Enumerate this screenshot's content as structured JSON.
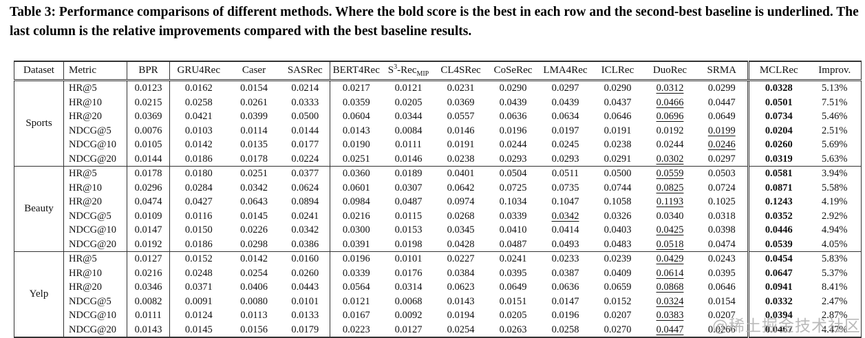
{
  "caption": "Table 3: Performance comparisons of different methods. Where the bold score is the best in each row and the second-best baseline is underlined. The last column is the relative improvements compared with the best baseline results.",
  "watermark": "@稀土掘金技术社区",
  "table": {
    "columns": [
      {
        "key": "dataset",
        "label": "Dataset"
      },
      {
        "key": "metric",
        "label": "Metric"
      },
      {
        "key": "v0",
        "label": "BPR"
      },
      {
        "key": "v1",
        "label": "GRU4Rec"
      },
      {
        "key": "v2",
        "label": "Caser"
      },
      {
        "key": "v3",
        "label": "SASRec"
      },
      {
        "key": "v4",
        "label": "BERT4Rec"
      },
      {
        "key": "v5",
        "label": "S3-RecMIP",
        "rich": {
          "base": "S",
          "sup": "3",
          "mid": "-Rec",
          "sub": "MIP"
        }
      },
      {
        "key": "v6",
        "label": "CL4SRec"
      },
      {
        "key": "v7",
        "label": "CoSeRec"
      },
      {
        "key": "v8",
        "label": "LMA4Rec"
      },
      {
        "key": "v9",
        "label": "ICLRec"
      },
      {
        "key": "v10",
        "label": "DuoRec"
      },
      {
        "key": "v11",
        "label": "SRMA"
      },
      {
        "key": "mclrec",
        "label": "MCLRec"
      },
      {
        "key": "improv",
        "label": "Improv."
      }
    ],
    "sections": [
      {
        "dataset": "Sports",
        "rows": [
          {
            "metric": "HR@5",
            "baselines": [
              "0.0123",
              "0.0162",
              "0.0154",
              "0.0214",
              "0.0217",
              "0.0121",
              "0.0231",
              "0.0290",
              "0.0297",
              "0.0290",
              "0.0312",
              "0.0299"
            ],
            "underline": 10,
            "mclrec": "0.0328",
            "improv": "5.13%"
          },
          {
            "metric": "HR@10",
            "baselines": [
              "0.0215",
              "0.0258",
              "0.0261",
              "0.0333",
              "0.0359",
              "0.0205",
              "0.0369",
              "0.0439",
              "0.0439",
              "0.0437",
              "0.0466",
              "0.0447"
            ],
            "underline": 10,
            "mclrec": "0.0501",
            "improv": "7.51%"
          },
          {
            "metric": "HR@20",
            "baselines": [
              "0.0369",
              "0.0421",
              "0.0399",
              "0.0500",
              "0.0604",
              "0.0344",
              "0.0557",
              "0.0636",
              "0.0634",
              "0.0646",
              "0.0696",
              "0.0649"
            ],
            "underline": 10,
            "mclrec": "0.0734",
            "improv": "5.46%"
          },
          {
            "metric": "NDCG@5",
            "baselines": [
              "0.0076",
              "0.0103",
              "0.0114",
              "0.0144",
              "0.0143",
              "0.0084",
              "0.0146",
              "0.0196",
              "0.0197",
              "0.0191",
              "0.0192",
              "0.0199"
            ],
            "underline": 11,
            "mclrec": "0.0204",
            "improv": "2.51%"
          },
          {
            "metric": "NDCG@10",
            "baselines": [
              "0.0105",
              "0.0142",
              "0.0135",
              "0.0177",
              "0.0190",
              "0.0111",
              "0.0191",
              "0.0244",
              "0.0245",
              "0.0238",
              "0.0244",
              "0.0246"
            ],
            "underline": 11,
            "mclrec": "0.0260",
            "improv": "5.69%"
          },
          {
            "metric": "NDCG@20",
            "baselines": [
              "0.0144",
              "0.0186",
              "0.0178",
              "0.0224",
              "0.0251",
              "0.0146",
              "0.0238",
              "0.0293",
              "0.0293",
              "0.0291",
              "0.0302",
              "0.0297"
            ],
            "underline": 10,
            "mclrec": "0.0319",
            "improv": "5.63%"
          }
        ]
      },
      {
        "dataset": "Beauty",
        "rows": [
          {
            "metric": "HR@5",
            "baselines": [
              "0.0178",
              "0.0180",
              "0.0251",
              "0.0377",
              "0.0360",
              "0.0189",
              "0.0401",
              "0.0504",
              "0.0511",
              "0.0500",
              "0.0559",
              "0.0503"
            ],
            "underline": 10,
            "mclrec": "0.0581",
            "improv": "3.94%"
          },
          {
            "metric": "HR@10",
            "baselines": [
              "0.0296",
              "0.0284",
              "0.0342",
              "0.0624",
              "0.0601",
              "0.0307",
              "0.0642",
              "0.0725",
              "0.0735",
              "0.0744",
              "0.0825",
              "0.0724"
            ],
            "underline": 10,
            "mclrec": "0.0871",
            "improv": "5.58%"
          },
          {
            "metric": "HR@20",
            "baselines": [
              "0.0474",
              "0.0427",
              "0.0643",
              "0.0894",
              "0.0984",
              "0.0487",
              "0.0974",
              "0.1034",
              "0.1047",
              "0.1058",
              "0.1193",
              "0.1025"
            ],
            "underline": 10,
            "mclrec": "0.1243",
            "improv": "4.19%"
          },
          {
            "metric": "NDCG@5",
            "baselines": [
              "0.0109",
              "0.0116",
              "0.0145",
              "0.0241",
              "0.0216",
              "0.0115",
              "0.0268",
              "0.0339",
              "0.0342",
              "0.0326",
              "0.0340",
              "0.0318"
            ],
            "underline": 8,
            "mclrec": "0.0352",
            "improv": "2.92%"
          },
          {
            "metric": "NDCG@10",
            "baselines": [
              "0.0147",
              "0.0150",
              "0.0226",
              "0.0342",
              "0.0300",
              "0.0153",
              "0.0345",
              "0.0410",
              "0.0414",
              "0.0403",
              "0.0425",
              "0.0398"
            ],
            "underline": 10,
            "mclrec": "0.0446",
            "improv": "4.94%"
          },
          {
            "metric": "NDCG@20",
            "baselines": [
              "0.0192",
              "0.0186",
              "0.0298",
              "0.0386",
              "0.0391",
              "0.0198",
              "0.0428",
              "0.0487",
              "0.0493",
              "0.0483",
              "0.0518",
              "0.0474"
            ],
            "underline": 10,
            "mclrec": "0.0539",
            "improv": "4.05%"
          }
        ]
      },
      {
        "dataset": "Yelp",
        "rows": [
          {
            "metric": "HR@5",
            "baselines": [
              "0.0127",
              "0.0152",
              "0.0142",
              "0.0160",
              "0.0196",
              "0.0101",
              "0.0227",
              "0.0241",
              "0.0233",
              "0.0239",
              "0.0429",
              "0.0243"
            ],
            "underline": 10,
            "mclrec": "0.0454",
            "improv": "5.83%"
          },
          {
            "metric": "HR@10",
            "baselines": [
              "0.0216",
              "0.0248",
              "0.0254",
              "0.0260",
              "0.0339",
              "0.0176",
              "0.0384",
              "0.0395",
              "0.0387",
              "0.0409",
              "0.0614",
              "0.0395"
            ],
            "underline": 10,
            "mclrec": "0.0647",
            "improv": "5.37%"
          },
          {
            "metric": "HR@20",
            "baselines": [
              "0.0346",
              "0.0371",
              "0.0406",
              "0.0443",
              "0.0564",
              "0.0314",
              "0.0623",
              "0.0649",
              "0.0636",
              "0.0659",
              "0.0868",
              "0.0646"
            ],
            "underline": 10,
            "mclrec": "0.0941",
            "improv": "8.41%"
          },
          {
            "metric": "NDCG@5",
            "baselines": [
              "0.0082",
              "0.0091",
              "0.0080",
              "0.0101",
              "0.0121",
              "0.0068",
              "0.0143",
              "0.0151",
              "0.0147",
              "0.0152",
              "0.0324",
              "0.0154"
            ],
            "underline": 10,
            "mclrec": "0.0332",
            "improv": "2.47%"
          },
          {
            "metric": "NDCG@10",
            "baselines": [
              "0.0111",
              "0.0124",
              "0.0113",
              "0.0133",
              "0.0167",
              "0.0092",
              "0.0194",
              "0.0205",
              "0.0196",
              "0.0207",
              "0.0383",
              "0.0207"
            ],
            "underline": 10,
            "mclrec": "0.0394",
            "improv": "2.87%"
          },
          {
            "metric": "NDCG@20",
            "baselines": [
              "0.0143",
              "0.0145",
              "0.0156",
              "0.0179",
              "0.0223",
              "0.0127",
              "0.0254",
              "0.0263",
              "0.0258",
              "0.0270",
              "0.0447",
              "0.0266"
            ],
            "underline": 10,
            "mclrec": "0.0467",
            "improv": "4.47%"
          }
        ]
      }
    ]
  }
}
